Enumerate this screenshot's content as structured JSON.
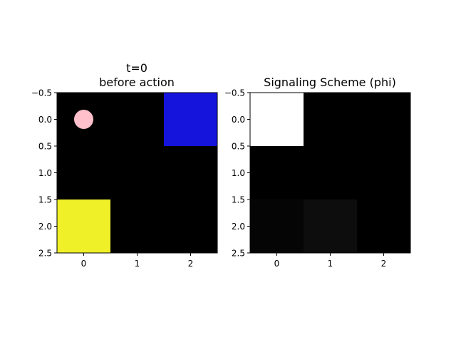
{
  "chart_data": [
    {
      "type": "heatmap",
      "title_lines": [
        "t=0",
        "before action"
      ],
      "x_ticks": [
        "0",
        "1",
        "2"
      ],
      "y_ticks": [
        "−0.5",
        "0.0",
        "0.5",
        "1.0",
        "1.5",
        "2.0",
        "2.5"
      ],
      "xlim": [
        -0.5,
        2.5
      ],
      "ylim": [
        2.5,
        -0.5
      ],
      "grid": false,
      "background_color": "#000000",
      "cells": [
        {
          "name": "goal-cell",
          "row": 0,
          "col": 2,
          "color": "#1414dc"
        },
        {
          "name": "item-cell",
          "row": 2,
          "col": 0,
          "color": "#f0f028"
        }
      ],
      "markers": [
        {
          "name": "agent-marker",
          "shape": "circle",
          "x": 0,
          "y": 0,
          "radius": 0.18,
          "color": "#ffc0cb"
        }
      ]
    },
    {
      "type": "heatmap",
      "title_lines": [
        "Signaling Scheme (phi)"
      ],
      "x_ticks": [
        "0",
        "1",
        "2"
      ],
      "y_ticks": [
        "−0.5",
        "0.0",
        "0.5",
        "1.0",
        "1.5",
        "2.0",
        "2.5"
      ],
      "xlim": [
        -0.5,
        2.5
      ],
      "ylim": [
        2.5,
        -0.5
      ],
      "grid": false,
      "colormap": "gray",
      "values": [
        [
          1.0,
          0.0,
          0.0
        ],
        [
          0.0,
          0.0,
          0.0
        ],
        [
          0.02,
          0.05,
          0.0
        ]
      ]
    }
  ]
}
